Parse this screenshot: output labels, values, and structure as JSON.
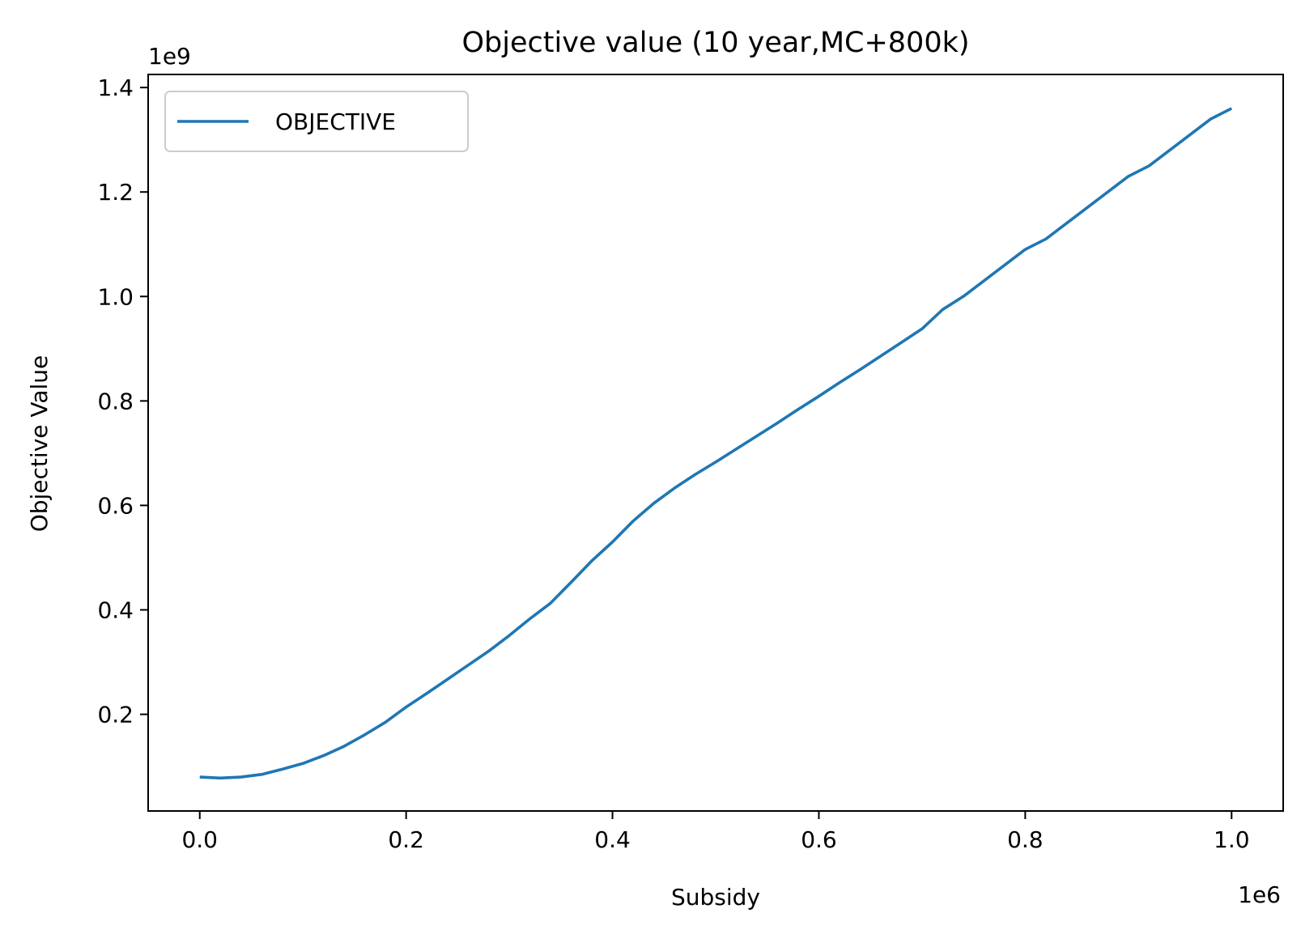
{
  "chart_data": {
    "type": "line",
    "title": "Objective value (10 year,MC+800k)",
    "xlabel": "Subsidy",
    "ylabel": "Objective Value",
    "x_offset_label": "1e6",
    "y_offset_label": "1e9",
    "xlim": [
      -0.05,
      1.05
    ],
    "ylim": [
      0.015,
      1.425
    ],
    "x_ticks": [
      0.0,
      0.2,
      0.4,
      0.6,
      0.8,
      1.0
    ],
    "x_tick_labels": [
      "0.0",
      "0.2",
      "0.4",
      "0.6",
      "0.8",
      "1.0"
    ],
    "y_ticks": [
      0.2,
      0.4,
      0.6,
      0.8,
      1.0,
      1.2,
      1.4
    ],
    "y_tick_labels": [
      "0.2",
      "0.4",
      "0.6",
      "0.8",
      "1.0",
      "1.2",
      "1.4"
    ],
    "grid": false,
    "legend": "top-left",
    "series": [
      {
        "name": "OBJECTIVE",
        "color": "#1f77b4",
        "x": [
          0.0,
          0.02,
          0.04,
          0.06,
          0.08,
          0.1,
          0.12,
          0.14,
          0.16,
          0.18,
          0.2,
          0.22,
          0.24,
          0.26,
          0.28,
          0.3,
          0.32,
          0.34,
          0.36,
          0.38,
          0.4,
          0.42,
          0.44,
          0.46,
          0.48,
          0.5,
          0.52,
          0.54,
          0.56,
          0.58,
          0.6,
          0.62,
          0.64,
          0.66,
          0.68,
          0.7,
          0.72,
          0.74,
          0.76,
          0.78,
          0.8,
          0.82,
          0.84,
          0.86,
          0.88,
          0.9,
          0.92,
          0.94,
          0.96,
          0.98,
          1.0
        ],
        "values": [
          0.08,
          0.078,
          0.08,
          0.085,
          0.095,
          0.106,
          0.121,
          0.139,
          0.161,
          0.185,
          0.214,
          0.24,
          0.267,
          0.294,
          0.321,
          0.351,
          0.383,
          0.413,
          0.453,
          0.494,
          0.53,
          0.57,
          0.604,
          0.633,
          0.659,
          0.683,
          0.708,
          0.733,
          0.758,
          0.784,
          0.809,
          0.835,
          0.86,
          0.886,
          0.912,
          0.938,
          0.975,
          1.0,
          1.03,
          1.06,
          1.09,
          1.11,
          1.14,
          1.17,
          1.2,
          1.23,
          1.25,
          1.28,
          1.31,
          1.34,
          1.36
        ]
      }
    ]
  }
}
